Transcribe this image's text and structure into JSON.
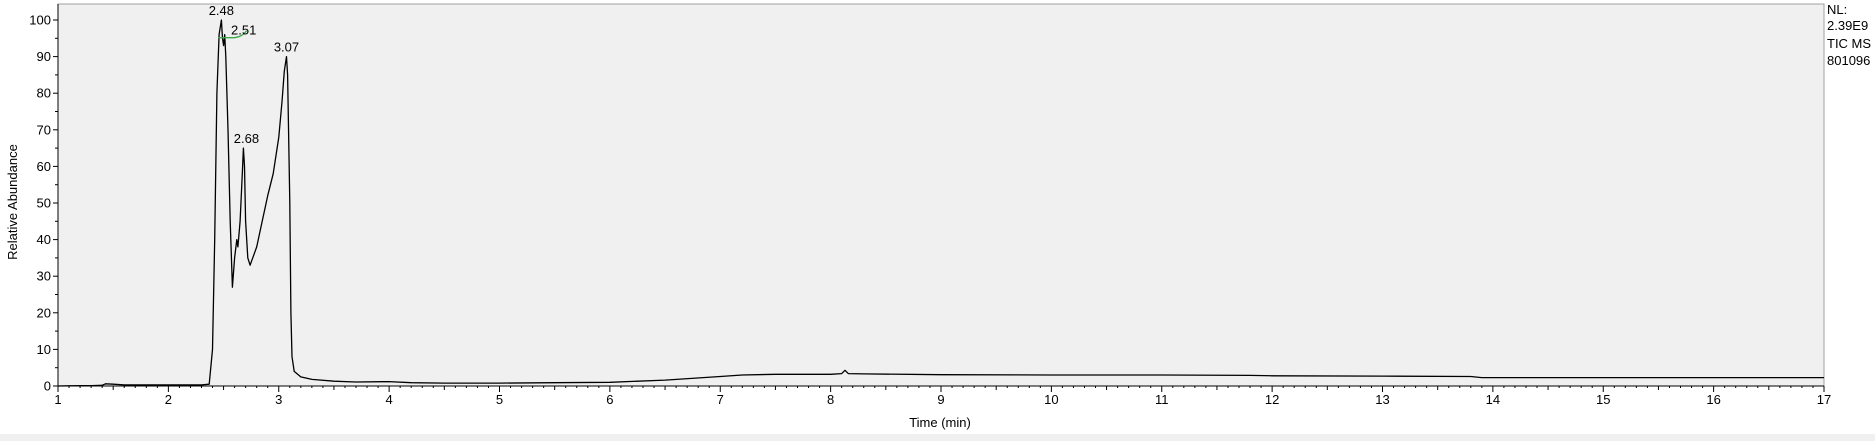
{
  "chart_data": {
    "type": "line",
    "xlabel": "Time (min)",
    "ylabel": "Relative Abundance",
    "xlim": [
      1,
      17
    ],
    "ylim": [
      0,
      100
    ],
    "xticks": [
      1,
      2,
      3,
      4,
      5,
      6,
      7,
      8,
      9,
      10,
      11,
      12,
      13,
      14,
      15,
      16,
      17
    ],
    "yticks": [
      0,
      10,
      20,
      30,
      40,
      50,
      60,
      70,
      80,
      90,
      100
    ],
    "info": [
      "NL:",
      "2.39E9",
      "TIC  MS",
      "801096"
    ],
    "peaks": [
      {
        "label": "2.48",
        "x": 2.48,
        "y": 100
      },
      {
        "label": "2.51",
        "x": 2.51,
        "y": 96
      },
      {
        "label": "2.68",
        "x": 2.68,
        "y": 65
      },
      {
        "label": "3.07",
        "x": 3.07,
        "y": 90
      }
    ],
    "series": [
      {
        "points": [
          [
            1.0,
            0.0
          ],
          [
            1.1,
            0.05
          ],
          [
            1.2,
            0.1
          ],
          [
            1.3,
            0.1
          ],
          [
            1.4,
            0.2
          ],
          [
            1.43,
            0.6
          ],
          [
            1.5,
            0.5
          ],
          [
            1.6,
            0.3
          ],
          [
            1.8,
            0.3
          ],
          [
            2.0,
            0.3
          ],
          [
            2.2,
            0.3
          ],
          [
            2.3,
            0.3
          ],
          [
            2.37,
            0.5
          ],
          [
            2.4,
            10
          ],
          [
            2.42,
            40
          ],
          [
            2.44,
            80
          ],
          [
            2.46,
            96
          ],
          [
            2.48,
            100
          ],
          [
            2.49,
            95
          ],
          [
            2.5,
            93
          ],
          [
            2.51,
            96
          ],
          [
            2.52,
            90
          ],
          [
            2.54,
            70
          ],
          [
            2.56,
            45
          ],
          [
            2.58,
            27
          ],
          [
            2.6,
            35
          ],
          [
            2.62,
            40
          ],
          [
            2.63,
            38
          ],
          [
            2.65,
            45
          ],
          [
            2.67,
            58
          ],
          [
            2.68,
            65
          ],
          [
            2.69,
            60
          ],
          [
            2.7,
            45
          ],
          [
            2.72,
            35
          ],
          [
            2.74,
            33
          ],
          [
            2.8,
            38
          ],
          [
            2.85,
            45
          ],
          [
            2.9,
            52
          ],
          [
            2.95,
            58
          ],
          [
            3.0,
            68
          ],
          [
            3.03,
            78
          ],
          [
            3.05,
            86
          ],
          [
            3.07,
            90
          ],
          [
            3.08,
            85
          ],
          [
            3.1,
            50
          ],
          [
            3.11,
            20
          ],
          [
            3.12,
            8
          ],
          [
            3.14,
            4
          ],
          [
            3.2,
            2.5
          ],
          [
            3.3,
            1.8
          ],
          [
            3.5,
            1.3
          ],
          [
            3.7,
            1.1
          ],
          [
            4.0,
            1.2
          ],
          [
            4.2,
            0.9
          ],
          [
            4.5,
            0.8
          ],
          [
            5.0,
            0.8
          ],
          [
            5.5,
            0.9
          ],
          [
            6.0,
            1.0
          ],
          [
            6.5,
            1.6
          ],
          [
            7.0,
            2.6
          ],
          [
            7.2,
            3.0
          ],
          [
            7.5,
            3.2
          ],
          [
            8.0,
            3.2
          ],
          [
            8.1,
            3.4
          ],
          [
            8.13,
            4.3
          ],
          [
            8.16,
            3.4
          ],
          [
            8.3,
            3.3
          ],
          [
            9.0,
            3.1
          ],
          [
            10.0,
            3.0
          ],
          [
            11.0,
            3.0
          ],
          [
            11.8,
            2.9
          ],
          [
            12.0,
            2.8
          ],
          [
            13.0,
            2.7
          ],
          [
            13.8,
            2.6
          ],
          [
            13.9,
            2.3
          ],
          [
            14.5,
            2.3
          ],
          [
            15.0,
            2.3
          ],
          [
            16.0,
            2.3
          ],
          [
            17.0,
            2.3
          ]
        ]
      }
    ]
  }
}
